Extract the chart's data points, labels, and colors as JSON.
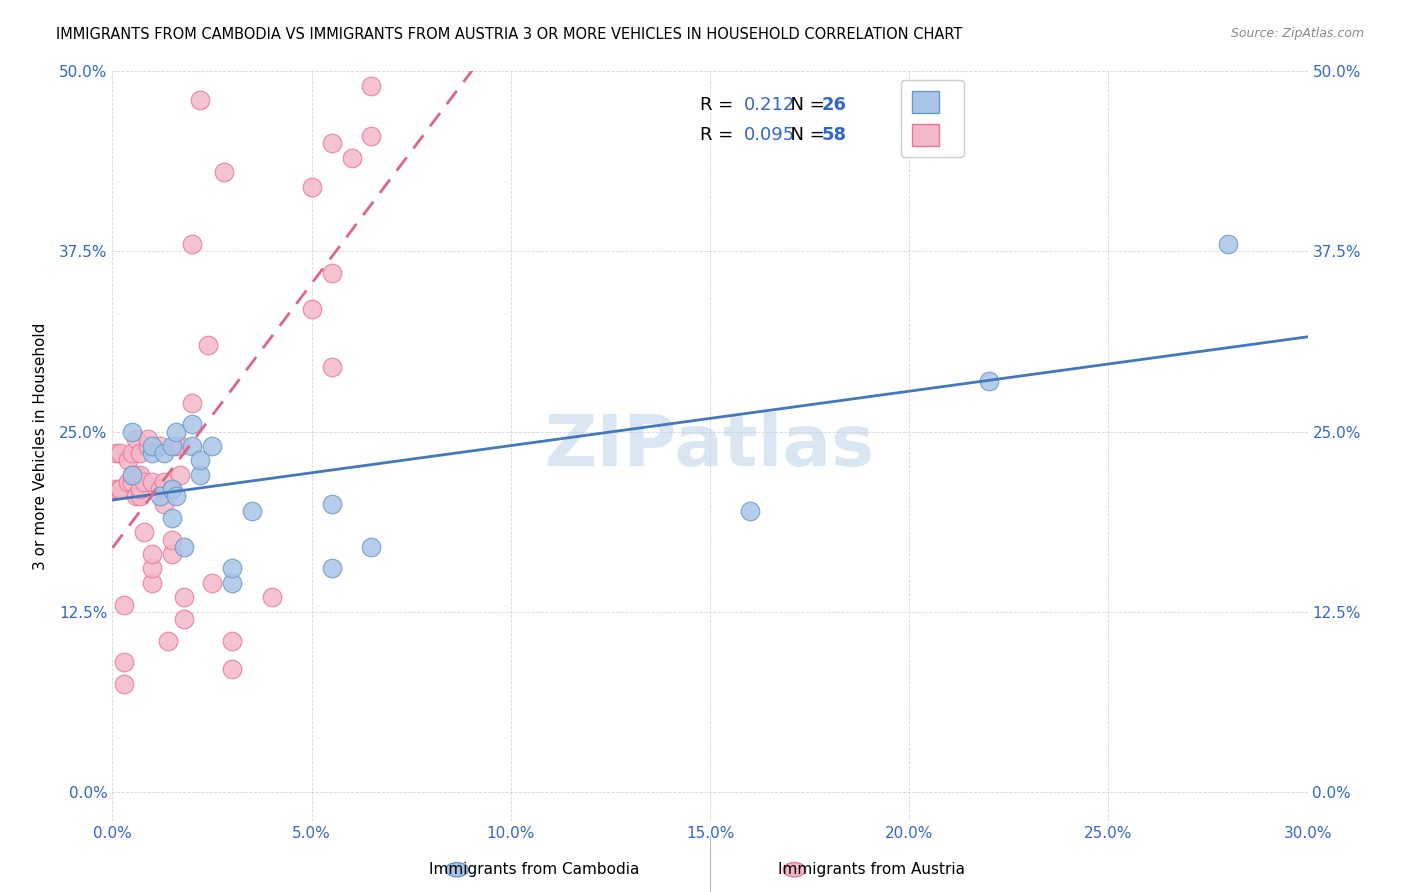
{
  "title": "IMMIGRANTS FROM CAMBODIA VS IMMIGRANTS FROM AUSTRIA 3 OR MORE VEHICLES IN HOUSEHOLD CORRELATION CHART",
  "source": "Source: ZipAtlas.com",
  "xlabel_ticks": [
    "0.0%",
    "5.0%",
    "10.0%",
    "15.0%",
    "20.0%",
    "25.0%",
    "30.0%"
  ],
  "ylabel_ticks": [
    "0.0%",
    "12.5%",
    "25.0%",
    "37.5%",
    "50.0%"
  ],
  "xlabel_label": "",
  "ylabel_label": "3 or more Vehicles in Household",
  "xmin": 0.0,
  "xmax": 0.3,
  "ymin": 0.0,
  "ymax": 0.5,
  "legend_label1": "Immigrants from Cambodia",
  "legend_label2": "Immigrants from Austria",
  "R1": "0.212",
  "N1": "26",
  "R2": "0.095",
  "N2": "58",
  "color1": "#aac4e8",
  "color2": "#f4b8c8",
  "color1_edge": "#6699cc",
  "color2_edge": "#e87799",
  "line1_color": "#4477bb",
  "line2_color": "#dd6688",
  "watermark": "ZIPatlas",
  "watermark_color": "#b8cfe8",
  "cambodia_x": [
    0.005,
    0.005,
    0.01,
    0.01,
    0.012,
    0.013,
    0.015,
    0.015,
    0.015,
    0.016,
    0.016,
    0.018,
    0.02,
    0.02,
    0.022,
    0.022,
    0.025,
    0.03,
    0.03,
    0.035,
    0.055,
    0.055,
    0.065,
    0.16,
    0.22,
    0.28
  ],
  "cambodia_y": [
    0.22,
    0.25,
    0.235,
    0.24,
    0.205,
    0.235,
    0.19,
    0.24,
    0.21,
    0.25,
    0.205,
    0.17,
    0.255,
    0.24,
    0.22,
    0.23,
    0.24,
    0.145,
    0.155,
    0.195,
    0.2,
    0.155,
    0.17,
    0.195,
    0.285,
    0.38
  ],
  "austria_x": [
    0.001,
    0.001,
    0.002,
    0.002,
    0.002,
    0.003,
    0.003,
    0.003,
    0.004,
    0.004,
    0.005,
    0.005,
    0.005,
    0.006,
    0.006,
    0.006,
    0.007,
    0.007,
    0.007,
    0.007,
    0.008,
    0.008,
    0.009,
    0.009,
    0.01,
    0.01,
    0.01,
    0.01,
    0.012,
    0.012,
    0.013,
    0.013,
    0.014,
    0.015,
    0.015,
    0.015,
    0.016,
    0.017,
    0.017,
    0.018,
    0.018,
    0.02,
    0.02,
    0.022,
    0.024,
    0.025,
    0.028,
    0.03,
    0.03,
    0.04,
    0.05,
    0.05,
    0.055,
    0.055,
    0.055,
    0.06,
    0.065,
    0.065
  ],
  "austria_y": [
    0.21,
    0.235,
    0.21,
    0.21,
    0.235,
    0.075,
    0.09,
    0.13,
    0.23,
    0.215,
    0.215,
    0.22,
    0.235,
    0.205,
    0.22,
    0.245,
    0.205,
    0.21,
    0.22,
    0.235,
    0.18,
    0.215,
    0.24,
    0.245,
    0.145,
    0.155,
    0.165,
    0.215,
    0.21,
    0.24,
    0.2,
    0.215,
    0.105,
    0.165,
    0.175,
    0.21,
    0.24,
    0.22,
    0.24,
    0.12,
    0.135,
    0.27,
    0.38,
    0.48,
    0.31,
    0.145,
    0.43,
    0.085,
    0.105,
    0.135,
    0.335,
    0.42,
    0.295,
    0.36,
    0.45,
    0.44,
    0.455,
    0.49
  ]
}
